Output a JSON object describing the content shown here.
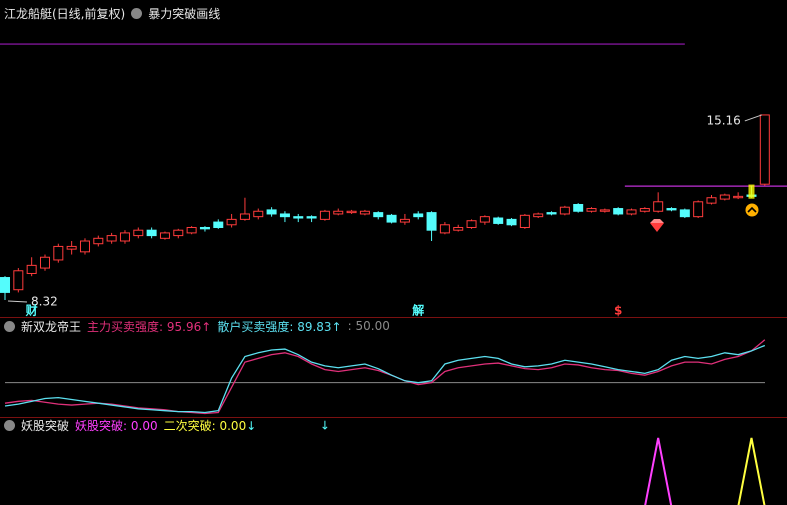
{
  "header": {
    "title": "江龙船艇(日线,前复权)",
    "indicator": "暴力突破画线"
  },
  "chart_data": [
    {
      "type": "candlestick",
      "ylim": [
        7.95,
        18.3
      ],
      "up_color": "#ff3c3c",
      "down_color": "#54fcfc",
      "open": [
        9.15,
        8.7,
        9.3,
        9.5,
        9.8,
        10.2,
        10.1,
        10.4,
        10.5,
        10.5,
        10.7,
        10.9,
        10.6,
        10.7,
        10.8,
        11.0,
        11.2,
        11.1,
        11.3,
        11.4,
        11.65,
        11.5,
        11.4,
        11.4,
        11.3,
        11.5,
        11.55,
        11.5,
        11.55,
        11.45,
        11.2,
        11.5,
        11.55,
        10.8,
        10.9,
        11.0,
        11.2,
        11.35,
        11.3,
        11.0,
        11.4,
        11.55,
        11.5,
        11.85,
        11.6,
        11.6,
        11.7,
        11.5,
        11.6,
        11.6,
        11.7,
        11.65,
        11.4,
        11.9,
        12.05,
        12.1,
        12.2,
        12.6
      ],
      "high": [
        9.2,
        9.5,
        9.9,
        10.0,
        10.4,
        10.5,
        10.6,
        10.7,
        10.8,
        10.9,
        11.0,
        11.0,
        10.85,
        10.95,
        11.05,
        11.05,
        11.3,
        11.5,
        12.1,
        11.7,
        11.75,
        11.6,
        11.5,
        11.45,
        11.65,
        11.7,
        11.65,
        11.65,
        11.6,
        11.5,
        11.5,
        11.6,
        11.6,
        11.2,
        11.1,
        11.3,
        11.45,
        11.4,
        11.35,
        11.5,
        11.55,
        11.6,
        11.8,
        11.9,
        11.75,
        11.7,
        11.75,
        11.7,
        11.75,
        12.3,
        11.75,
        11.7,
        12.0,
        12.2,
        12.25,
        12.3,
        12.55,
        15.16
      ],
      "low": [
        8.32,
        8.6,
        9.2,
        9.4,
        9.7,
        10.0,
        10.0,
        10.3,
        10.4,
        10.4,
        10.6,
        10.6,
        10.55,
        10.6,
        10.75,
        10.85,
        10.95,
        11.0,
        11.25,
        11.3,
        11.4,
        11.2,
        11.2,
        11.2,
        11.25,
        11.45,
        11.5,
        11.45,
        11.3,
        11.15,
        11.1,
        11.3,
        10.5,
        10.75,
        10.85,
        10.95,
        11.1,
        11.1,
        11.05,
        10.95,
        11.35,
        11.45,
        11.45,
        11.55,
        11.55,
        11.55,
        11.45,
        11.45,
        11.55,
        11.55,
        11.6,
        11.35,
        11.35,
        11.85,
        12.0,
        12.05,
        12.1,
        12.55
      ],
      "close": [
        8.6,
        9.4,
        9.6,
        9.9,
        10.3,
        10.3,
        10.5,
        10.6,
        10.7,
        10.8,
        10.9,
        10.7,
        10.8,
        10.9,
        11.0,
        10.95,
        11.0,
        11.3,
        11.5,
        11.6,
        11.5,
        11.4,
        11.35,
        11.35,
        11.6,
        11.6,
        11.6,
        11.6,
        11.4,
        11.2,
        11.3,
        11.4,
        10.9,
        11.1,
        11.0,
        11.25,
        11.4,
        11.15,
        11.1,
        11.45,
        11.5,
        11.5,
        11.75,
        11.6,
        11.7,
        11.65,
        11.5,
        11.65,
        11.7,
        11.95,
        11.65,
        11.4,
        11.95,
        12.1,
        12.2,
        12.15,
        12.15,
        15.16
      ],
      "annotations": [
        {
          "value": 15.16,
          "index": 57
        },
        {
          "value": 8.32,
          "index": 0
        }
      ],
      "levels": [
        {
          "value": 17.78,
          "from": 0,
          "to": 51,
          "color": "#9a1ab8"
        },
        {
          "value": 12.53,
          "from": 47,
          "to": 59,
          "color": "#c030d8"
        }
      ],
      "markers": [
        {
          "text": "财",
          "index": 2,
          "color": "#54fcfc"
        },
        {
          "text": "解",
          "index": 31,
          "color": "#54fcfc"
        },
        {
          "text": "$",
          "index": 46,
          "color": "#ff3c3c"
        }
      ]
    },
    {
      "type": "line",
      "title": "新双龙帝王",
      "ylim": [
        10,
        100
      ],
      "series": [
        {
          "name": "主力买卖强度:",
          "color": "#e0307a",
          "value_label": "95.96",
          "trend": "↑",
          "values": [
            28,
            30,
            31,
            29,
            27,
            26,
            27,
            28,
            27,
            25,
            23,
            22,
            21,
            19,
            18,
            17,
            18,
            45,
            72,
            76,
            80,
            82,
            78,
            70,
            64,
            62,
            64,
            66,
            63,
            58,
            52,
            48,
            50,
            62,
            66,
            68,
            70,
            71,
            68,
            65,
            64,
            66,
            70,
            69,
            66,
            64,
            63,
            60,
            58,
            62,
            68,
            72,
            72,
            70,
            75,
            78,
            84,
            95.96
          ]
        },
        {
          "name": "散户买卖强度:",
          "color": "#5ce0f0",
          "value_label": "89.83",
          "trend": "↑",
          "values": [
            25,
            27,
            30,
            33,
            34,
            32,
            30,
            28,
            26,
            24,
            22,
            21,
            20,
            19,
            19,
            18,
            20,
            55,
            78,
            82,
            85,
            86,
            80,
            72,
            68,
            66,
            68,
            70,
            65,
            58,
            52,
            50,
            52,
            70,
            74,
            76,
            78,
            76,
            70,
            67,
            68,
            70,
            74,
            72,
            70,
            67,
            64,
            62,
            60,
            64,
            74,
            78,
            76,
            78,
            82,
            80,
            84,
            89.83
          ]
        }
      ],
      "reference": {
        "prefix": ":",
        "value": 50,
        "label": "50.00",
        "color": "#8a8a8a"
      }
    },
    {
      "type": "line",
      "title": "妖股突破",
      "ylim": [
        0,
        1
      ],
      "series": [
        {
          "name": "妖股突破:",
          "color": "#ff40ff",
          "value_label": "0.00",
          "values": [
            0,
            0,
            0,
            0,
            0,
            0,
            0,
            0,
            0,
            0,
            0,
            0,
            0,
            0,
            0,
            0,
            0,
            0,
            0,
            0,
            0,
            0,
            0,
            0,
            0,
            0,
            0,
            0,
            0,
            0,
            0,
            0,
            0,
            0,
            0,
            0,
            0,
            0,
            0,
            0,
            0,
            0,
            0,
            0,
            0,
            0,
            0,
            0,
            0,
            1,
            0,
            0,
            0,
            0,
            0,
            0,
            0,
            0
          ]
        },
        {
          "name": "二次突破:",
          "color": "#ffff40",
          "value_label": "0.00",
          "trend": "↓",
          "values": [
            0,
            0,
            0,
            0,
            0,
            0,
            0,
            0,
            0,
            0,
            0,
            0,
            0,
            0,
            0,
            0,
            0,
            0,
            0,
            0,
            0,
            0,
            0,
            0,
            0,
            0,
            0,
            0,
            0,
            0,
            0,
            0,
            0,
            0,
            0,
            0,
            0,
            0,
            0,
            0,
            0,
            0,
            0,
            0,
            0,
            0,
            0,
            0,
            0,
            0,
            0,
            0,
            0,
            0,
            0,
            0,
            1,
            0
          ]
        }
      ],
      "signal": {
        "text": "↓",
        "index": 24,
        "color": "#54fcfc"
      }
    }
  ]
}
